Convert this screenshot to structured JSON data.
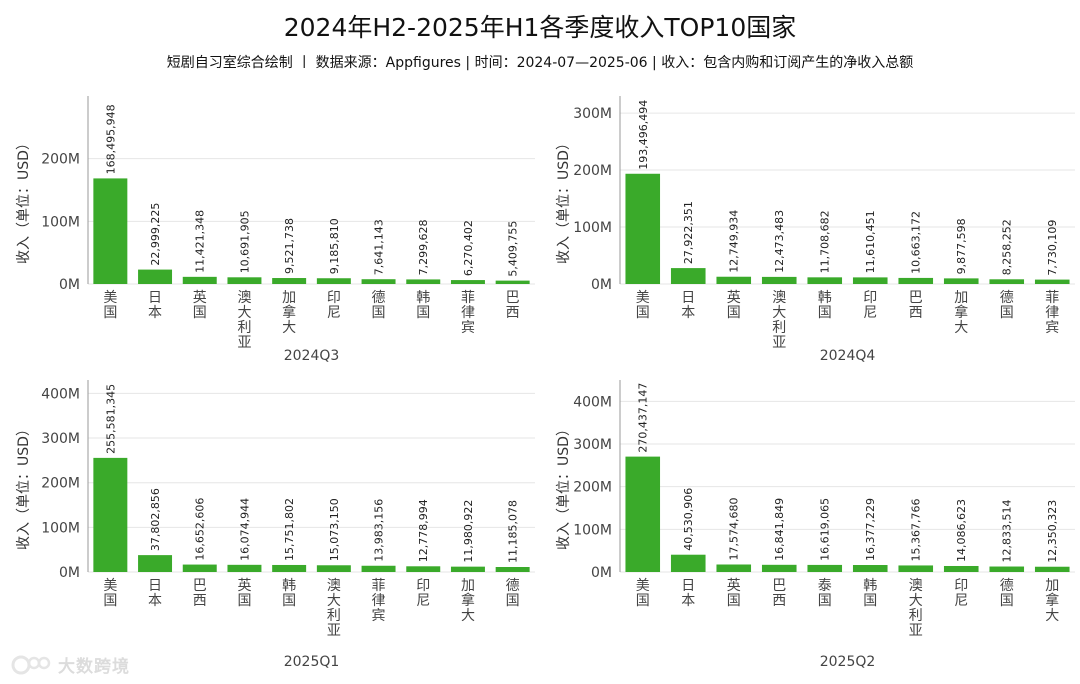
{
  "title": "2024年H2-2025年H1各季度收入TOP10国家",
  "subtitle": "短剧自习室综合绘制 丨 数据来源：Appfigures | 时间：2024-07—2025-06 | 收入：包含内购和订阅产生的净收入总额",
  "watermark": "大数跨境",
  "colors": {
    "bar": "#3aaa2a",
    "grid": "#e6e6e6"
  },
  "chart_data": [
    {
      "type": "bar",
      "period": "2024Q3",
      "ylabel": "收入（单位：USD）",
      "ylim": [
        0,
        300000000
      ],
      "yticks": [
        0,
        100000000,
        200000000
      ],
      "ytick_labels": [
        "0M",
        "100M",
        "200M"
      ],
      "categories": [
        "美国",
        "日本",
        "英国",
        "澳大利亚",
        "加拿大",
        "印尼",
        "德国",
        "韩国",
        "菲律宾",
        "巴西"
      ],
      "values": [
        168495948,
        22999225,
        11421348,
        10691905,
        9521738,
        9185810,
        7641143,
        7299628,
        6270402,
        5409755
      ],
      "value_labels": [
        "168,495,948",
        "22,999,225",
        "11,421,348",
        "10,691,905",
        "9,521,738",
        "9,185,810",
        "7,641,143",
        "7,299,628",
        "6,270,402",
        "5,409,755"
      ]
    },
    {
      "type": "bar",
      "period": "2024Q4",
      "ylabel": "收入（单位：USD）",
      "ylim": [
        0,
        330000000
      ],
      "yticks": [
        0,
        100000000,
        200000000,
        300000000
      ],
      "ytick_labels": [
        "0M",
        "100M",
        "200M",
        "300M"
      ],
      "categories": [
        "美国",
        "日本",
        "英国",
        "澳大利亚",
        "韩国",
        "印尼",
        "巴西",
        "加拿大",
        "德国",
        "菲律宾"
      ],
      "values": [
        193496494,
        27922351,
        12749934,
        12473483,
        11708682,
        11610451,
        10663172,
        9877598,
        8258252,
        7730109
      ],
      "value_labels": [
        "193,496,494",
        "27,922,351",
        "12,749,934",
        "12,473,483",
        "11,708,682",
        "11,610,451",
        "10,663,172",
        "9,877,598",
        "8,258,252",
        "7,730,109"
      ]
    },
    {
      "type": "bar",
      "period": "2025Q1",
      "ylabel": "收入（单位：USD）",
      "ylim": [
        0,
        430000000
      ],
      "yticks": [
        0,
        100000000,
        200000000,
        300000000,
        400000000
      ],
      "ytick_labels": [
        "0M",
        "100M",
        "200M",
        "300M",
        "400M"
      ],
      "categories": [
        "美国",
        "日本",
        "巴西",
        "英国",
        "韩国",
        "澳大利亚",
        "菲律宾",
        "印尼",
        "加拿大",
        "德国"
      ],
      "values": [
        255581345,
        37802856,
        16652606,
        16074944,
        15751802,
        15073150,
        13983156,
        12778994,
        11980922,
        11185078
      ],
      "value_labels": [
        "255,581,345",
        "37,802,856",
        "16,652,606",
        "16,074,944",
        "15,751,802",
        "15,073,150",
        "13,983,156",
        "12,778,994",
        "11,980,922",
        "11,185,078"
      ]
    },
    {
      "type": "bar",
      "period": "2025Q2",
      "ylabel": "收入（单位：USD）",
      "ylim": [
        0,
        450000000
      ],
      "yticks": [
        0,
        100000000,
        200000000,
        300000000,
        400000000
      ],
      "ytick_labels": [
        "0M",
        "100M",
        "200M",
        "300M",
        "400M"
      ],
      "categories": [
        "美国",
        "日本",
        "英国",
        "巴西",
        "泰国",
        "韩国",
        "澳大利亚",
        "印尼",
        "德国",
        "加拿大"
      ],
      "values": [
        270437147,
        40530906,
        17574680,
        16841849,
        16619065,
        16377229,
        15367766,
        14086623,
        12833514,
        12350323
      ],
      "value_labels": [
        "270,437,147",
        "40,530,906",
        "17,574,680",
        "16,841,849",
        "16,619,065",
        "16,377,229",
        "15,367,766",
        "14,086,623",
        "12,833,514",
        "12,350,323"
      ]
    }
  ]
}
